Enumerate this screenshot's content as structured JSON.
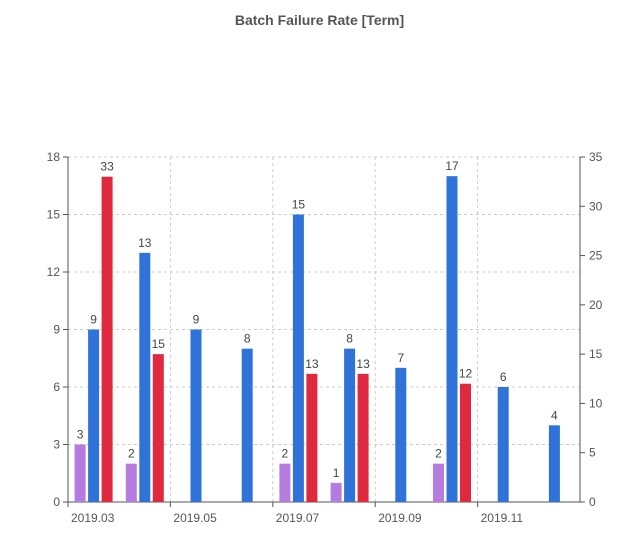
{
  "chart_data": {
    "type": "bar",
    "title": "Batch Failure Rate [Term]",
    "x_tick_labels": [
      "2019.03",
      "2019.05",
      "2019.07",
      "2019.09",
      "2019.11"
    ],
    "y_left": {
      "ticks": [
        0,
        3,
        6,
        9,
        12,
        15,
        18
      ],
      "ylim": [
        0,
        18
      ]
    },
    "y_right": {
      "ticks": [
        0,
        5,
        10,
        15,
        20,
        25,
        30,
        35
      ],
      "ylim": [
        0,
        35
      ]
    },
    "grid": true,
    "groups": 10,
    "series": [
      {
        "color": "#b57bde",
        "axis": "left",
        "values": [
          3,
          2,
          null,
          null,
          2,
          1,
          null,
          2,
          null,
          null
        ]
      },
      {
        "color": "#2f73d9",
        "axis": "left",
        "values": [
          9,
          13,
          9,
          8,
          15,
          8,
          7,
          17,
          6,
          4
        ]
      },
      {
        "color": "#e0283f",
        "axis": "right",
        "values": [
          33,
          15,
          null,
          null,
          13,
          13,
          null,
          12,
          null,
          null
        ]
      }
    ]
  }
}
